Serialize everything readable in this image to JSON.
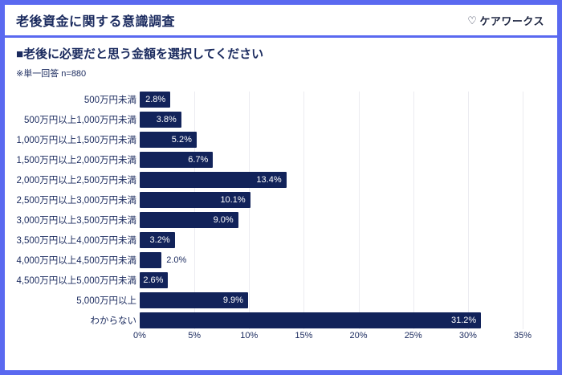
{
  "header": {
    "title": "老後資金に関する意識調査",
    "logo_icon": "♡",
    "logo_text": "ケアワークス"
  },
  "question": {
    "label": "■老後に必要だと思う金額を選択してください",
    "note": "※単一回答 n=880"
  },
  "chart_data": {
    "type": "bar",
    "orientation": "horizontal",
    "title": "老後に必要だと思う金額を選択してください",
    "categories": [
      "500万円未満",
      "500万円以上1,000万円未満",
      "1,000万円以上1,500万円未満",
      "1,500万円以上2,000万円未満",
      "2,000万円以上2,500万円未満",
      "2,500万円以上3,000万円未満",
      "3,000万円以上3,500万円未満",
      "3,500万円以上4,000万円未満",
      "4,000万円以上4,500万円未満",
      "4,500万円以上5,000万円未満",
      "5,000万円以上",
      "わからない"
    ],
    "values": [
      2.8,
      3.8,
      5.2,
      6.7,
      13.4,
      10.1,
      9.0,
      3.2,
      2.0,
      2.6,
      9.9,
      31.2
    ],
    "value_labels": [
      "2.8%",
      "3.8%",
      "5.2%",
      "6.7%",
      "13.4%",
      "10.1%",
      "9.0%",
      "3.2%",
      "2.0%",
      "2.6%",
      "9.9%",
      "31.2%"
    ],
    "xlabel": "",
    "ylabel": "",
    "xlim": [
      0,
      35
    ],
    "x_ticks": [
      0,
      5,
      10,
      15,
      20,
      25,
      30,
      35
    ],
    "x_tick_labels": [
      "0%",
      "5%",
      "10%",
      "15%",
      "20%",
      "25%",
      "30%",
      "35%"
    ],
    "grid": "vertical",
    "legend": "none",
    "bar_color": "#12235a",
    "value_label_color_inside": "#ffffff",
    "value_label_color_outside": "#1a2a5e"
  },
  "colors": {
    "frame_blue": "#5a69f0",
    "navy_text": "#1a2a5e",
    "gridline": "#ebebf0",
    "card_background": "#ffffff"
  }
}
